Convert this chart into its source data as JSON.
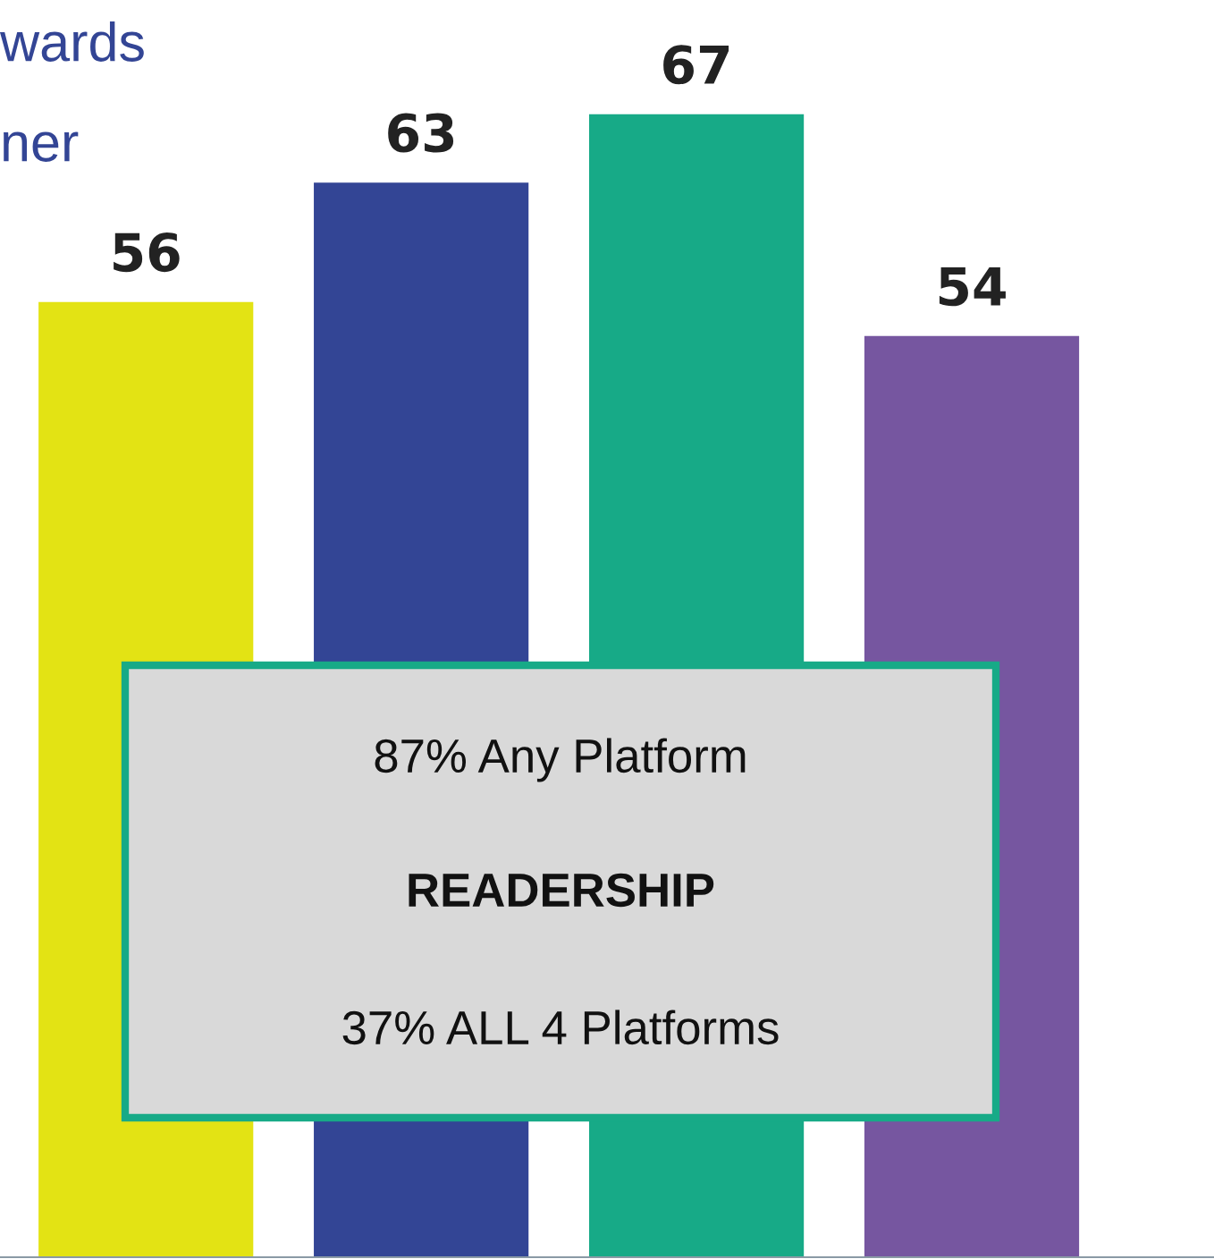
{
  "chart_data": {
    "type": "bar",
    "categories": [
      null,
      null,
      null,
      null
    ],
    "values": [
      56,
      63,
      67,
      54
    ],
    "colors": [
      "#e3e314",
      "#334595",
      "#17aa87",
      "#7656a0"
    ],
    "data_labels": true,
    "grid": false,
    "legend": false,
    "annotations": [
      "wards",
      "ner",
      "87% Any Platform",
      "READERSHIP",
      "37% ALL 4 Platforms"
    ]
  }
}
